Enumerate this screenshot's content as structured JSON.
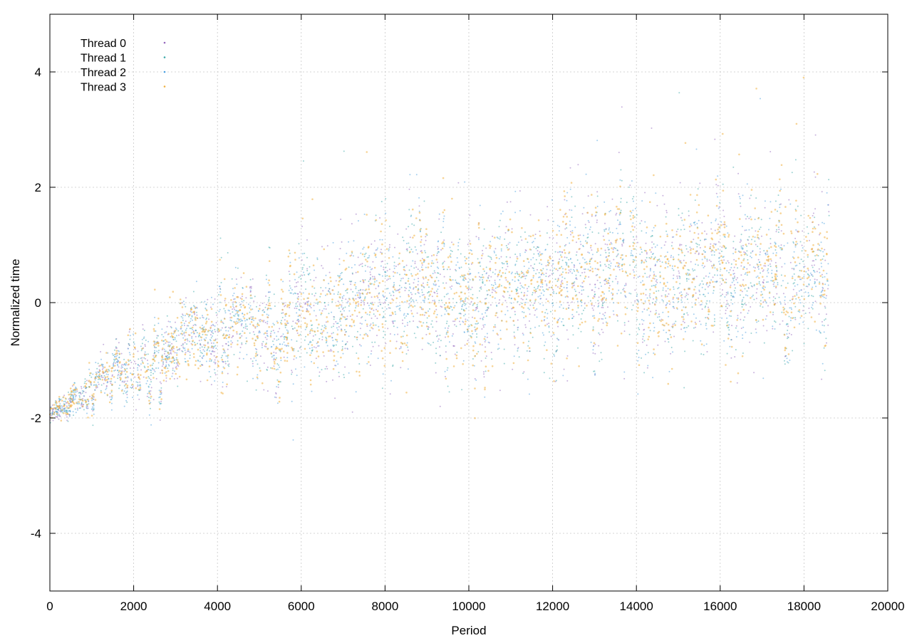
{
  "chart_data": {
    "type": "scatter",
    "title": "",
    "xlabel": "Period",
    "ylabel": "Normalized time",
    "xlim": [
      0,
      20000
    ],
    "ylim": [
      -5,
      5
    ],
    "xticks": [
      0,
      2000,
      4000,
      6000,
      8000,
      10000,
      12000,
      14000,
      16000,
      18000,
      20000
    ],
    "yticks": [
      -4,
      -2,
      0,
      2,
      4
    ],
    "xtick_labels": [
      "0",
      "2000",
      "4000",
      "6000",
      "8000",
      "10000",
      "12000",
      "14000",
      "16000",
      "18000",
      "20000"
    ],
    "ytick_labels": [
      "-4",
      "-2",
      "0",
      "2",
      "4"
    ],
    "grid": true,
    "legend_position": "top-left",
    "point_count_per_series": 18600,
    "trend": [
      {
        "x": 0,
        "y": -1.95
      },
      {
        "x": 500,
        "y": -1.7
      },
      {
        "x": 1000,
        "y": -1.45
      },
      {
        "x": 2000,
        "y": -1.1
      },
      {
        "x": 3000,
        "y": -0.8
      },
      {
        "x": 4000,
        "y": -0.65
      },
      {
        "x": 5000,
        "y": -0.5
      },
      {
        "x": 6000,
        "y": -0.35
      },
      {
        "x": 7000,
        "y": -0.3
      },
      {
        "x": 8000,
        "y": 0.2
      },
      {
        "x": 9000,
        "y": 0.2
      },
      {
        "x": 10000,
        "y": 0.1
      },
      {
        "x": 11000,
        "y": 0.25
      },
      {
        "x": 12000,
        "y": 0.3
      },
      {
        "x": 13000,
        "y": 0.5
      },
      {
        "x": 14000,
        "y": 0.5
      },
      {
        "x": 15000,
        "y": 0.5
      },
      {
        "x": 16000,
        "y": 0.6
      },
      {
        "x": 17000,
        "y": 0.6
      },
      {
        "x": 18000,
        "y": 0.5
      },
      {
        "x": 18600,
        "y": 0.55
      }
    ],
    "series": [
      {
        "name": "Thread 0",
        "color": "#9467bd"
      },
      {
        "name": "Thread 1",
        "color": "#3aa8a8"
      },
      {
        "name": "Thread 2",
        "color": "#4a9fe0"
      },
      {
        "name": "Thread 3",
        "color": "#f0b040"
      }
    ]
  }
}
